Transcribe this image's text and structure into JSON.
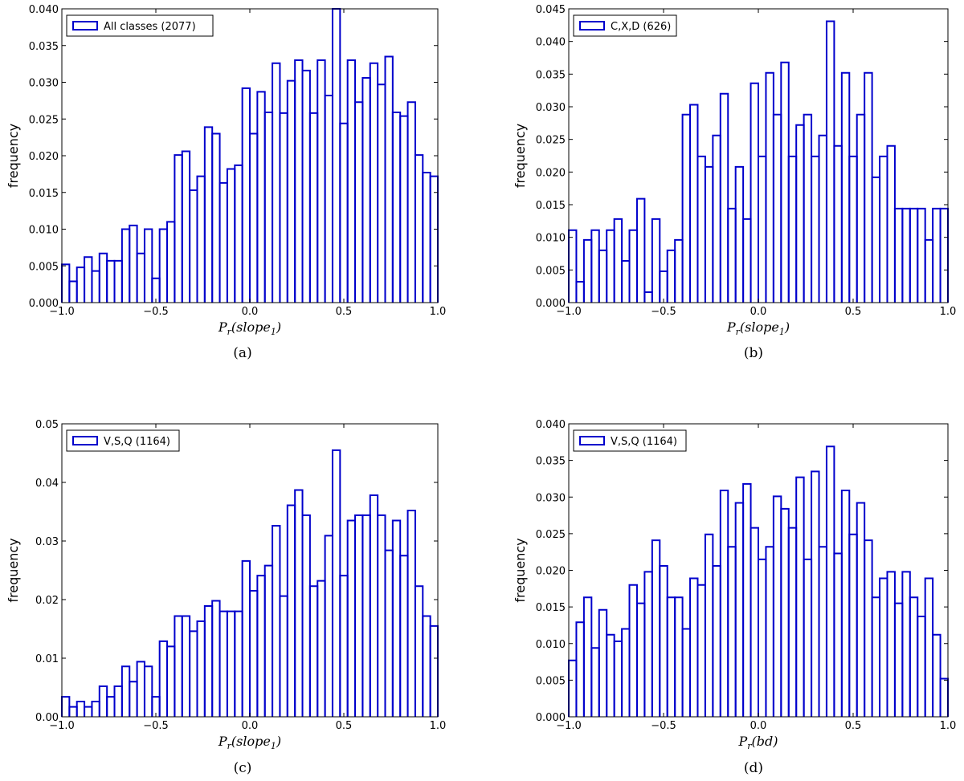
{
  "chart_data": [
    {
      "type": "histogram",
      "caption": "(a)",
      "ylabel": "frequency",
      "xlabel_main": "P",
      "xlabel_sub": "r",
      "xlabel_arg": "(slope",
      "xlabel_arg_sub": "1",
      "xlabel_close": ")",
      "legend": "All classes (2077)",
      "legend_position": "top-left",
      "xlim": [
        -1.0,
        1.0
      ],
      "ylim": [
        0.0,
        0.04
      ],
      "xticks": [
        "−1.0",
        "−0.5",
        "0.0",
        "0.5",
        "1.0"
      ],
      "yticks": [
        "0.000",
        "0.005",
        "0.010",
        "0.015",
        "0.020",
        "0.025",
        "0.030",
        "0.035",
        "0.040"
      ],
      "bin_start": -1.0,
      "bin_width": 0.04,
      "values": [
        0.0052,
        0.0029,
        0.0048,
        0.0062,
        0.0043,
        0.0067,
        0.0057,
        0.0057,
        0.01,
        0.0105,
        0.0067,
        0.01,
        0.0033,
        0.01,
        0.011,
        0.0201,
        0.0206,
        0.0153,
        0.0172,
        0.0239,
        0.023,
        0.0163,
        0.0182,
        0.0187,
        0.0292,
        0.023,
        0.0287,
        0.0259,
        0.0326,
        0.0258,
        0.0302,
        0.033,
        0.0316,
        0.0258,
        0.033,
        0.0282,
        0.04,
        0.0244,
        0.033,
        0.0273,
        0.0306,
        0.0326,
        0.0297,
        0.0335,
        0.0259,
        0.0254,
        0.0273,
        0.0201,
        0.0177,
        0.0172
      ]
    },
    {
      "type": "histogram",
      "caption": "(b)",
      "ylabel": "frequency",
      "xlabel_main": "P",
      "xlabel_sub": "r",
      "xlabel_arg": "(slope",
      "xlabel_arg_sub": "1",
      "xlabel_close": ")",
      "legend": "C,X,D (626)",
      "legend_position": "top-left",
      "xlim": [
        -1.0,
        1.0
      ],
      "ylim": [
        0.0,
        0.045
      ],
      "xticks": [
        "−1.0",
        "−0.5",
        "0.0",
        "0.5",
        "1.0"
      ],
      "yticks": [
        "0.000",
        "0.005",
        "0.010",
        "0.015",
        "0.020",
        "0.025",
        "0.030",
        "0.035",
        "0.040",
        "0.045"
      ],
      "bin_start": -1.0,
      "bin_width": 0.04,
      "values": [
        0.0111,
        0.0032,
        0.0096,
        0.0111,
        0.008,
        0.0111,
        0.0128,
        0.0064,
        0.0111,
        0.0159,
        0.0016,
        0.0128,
        0.0048,
        0.008,
        0.0096,
        0.0288,
        0.0303,
        0.0224,
        0.0208,
        0.0256,
        0.032,
        0.0144,
        0.0208,
        0.0128,
        0.0336,
        0.0224,
        0.0352,
        0.0288,
        0.0368,
        0.0224,
        0.0272,
        0.0288,
        0.0224,
        0.0256,
        0.0431,
        0.024,
        0.0352,
        0.0224,
        0.0288,
        0.0352,
        0.0192,
        0.0224,
        0.024,
        0.0144,
        0.0144,
        0.0144,
        0.0144,
        0.0096,
        0.0144,
        0.0144
      ]
    },
    {
      "type": "histogram",
      "caption": "(c)",
      "ylabel": "frequency",
      "xlabel_main": "P",
      "xlabel_sub": "r",
      "xlabel_arg": "(slope",
      "xlabel_arg_sub": "1",
      "xlabel_close": ")",
      "legend": "V,S,Q (1164)",
      "legend_position": "top-left",
      "xlim": [
        -1.0,
        1.0
      ],
      "ylim": [
        0.0,
        0.05
      ],
      "xticks": [
        "−1.0",
        "−0.5",
        "0.0",
        "0.5",
        "1.0"
      ],
      "yticks": [
        "0.00",
        "0.01",
        "0.02",
        "0.03",
        "0.04",
        "0.05"
      ],
      "bin_start": -1.0,
      "bin_width": 0.04,
      "values": [
        0.0034,
        0.0017,
        0.0026,
        0.0017,
        0.0026,
        0.0052,
        0.0034,
        0.0052,
        0.0086,
        0.006,
        0.0094,
        0.0086,
        0.0034,
        0.0129,
        0.012,
        0.0172,
        0.0172,
        0.0146,
        0.0163,
        0.0189,
        0.0198,
        0.018,
        0.018,
        0.018,
        0.0266,
        0.0215,
        0.0241,
        0.0258,
        0.0326,
        0.0206,
        0.0361,
        0.0387,
        0.0344,
        0.0223,
        0.0232,
        0.0309,
        0.0455,
        0.0241,
        0.0335,
        0.0344,
        0.0344,
        0.0378,
        0.0344,
        0.0284,
        0.0335,
        0.0275,
        0.0352,
        0.0223,
        0.0172,
        0.0155
      ]
    },
    {
      "type": "histogram",
      "caption": "(d)",
      "ylabel": "frequency",
      "xlabel_main": "P",
      "xlabel_sub": "r",
      "xlabel_arg": "(bd",
      "xlabel_arg_sub": "",
      "xlabel_close": ")",
      "legend": "V,S,Q (1164)",
      "legend_position": "top-left",
      "xlim": [
        -1.0,
        1.0
      ],
      "ylim": [
        0.0,
        0.04
      ],
      "xticks": [
        "−1.0",
        "−0.5",
        "0.0",
        "0.5",
        "1.0"
      ],
      "yticks": [
        "0.000",
        "0.005",
        "0.010",
        "0.015",
        "0.020",
        "0.025",
        "0.030",
        "0.035",
        "0.040"
      ],
      "bin_start": -1.0,
      "bin_width": 0.04,
      "values": [
        0.0077,
        0.0129,
        0.0163,
        0.0094,
        0.0146,
        0.0112,
        0.0103,
        0.012,
        0.018,
        0.0155,
        0.0198,
        0.0241,
        0.0206,
        0.0163,
        0.0163,
        0.012,
        0.0189,
        0.018,
        0.0249,
        0.0206,
        0.0309,
        0.0232,
        0.0292,
        0.0318,
        0.0258,
        0.0215,
        0.0232,
        0.0301,
        0.0284,
        0.0258,
        0.0327,
        0.0215,
        0.0335,
        0.0232,
        0.0369,
        0.0223,
        0.0309,
        0.0249,
        0.0292,
        0.0241,
        0.0163,
        0.0189,
        0.0198,
        0.0155,
        0.0198,
        0.0163,
        0.0137,
        0.0189,
        0.0112,
        0.0052
      ]
    }
  ],
  "style": {
    "bar_color": "#0000cc",
    "axis_color": "#000000",
    "background": "#ffffff"
  }
}
